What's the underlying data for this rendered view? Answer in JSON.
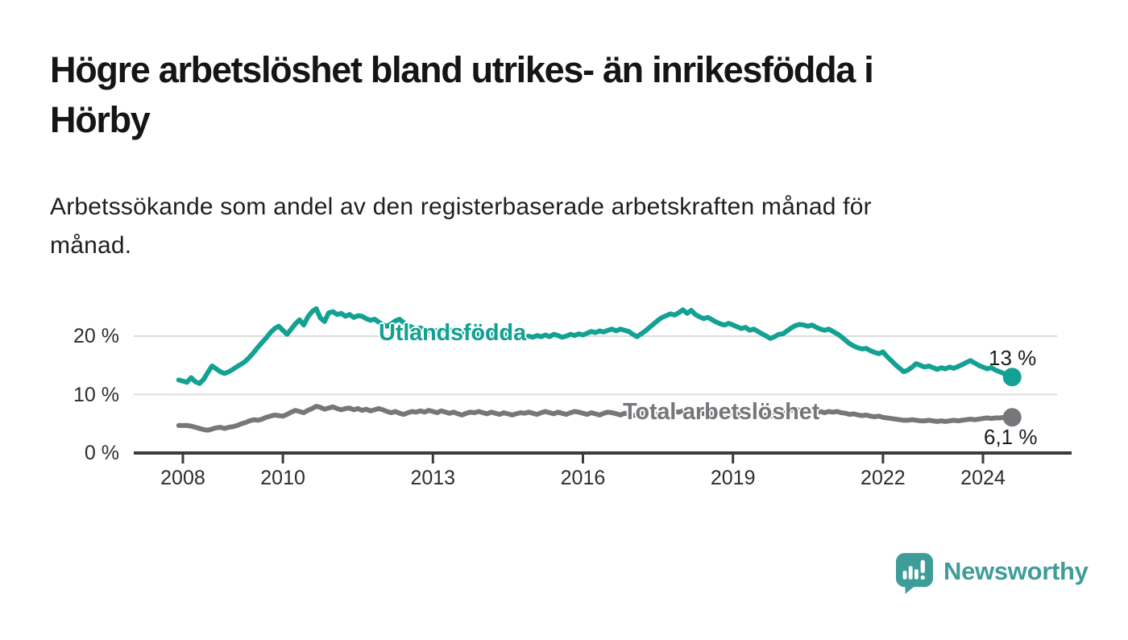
{
  "footer": {
    "brand": "Newsworthy"
  },
  "colors": {
    "accent_teal": "#12a193",
    "series_gray": "#77767b",
    "axis": "#3b3b3b",
    "grid": "#dcdcdc",
    "text_dark": "#151515",
    "logo_teal": "#3e9d99"
  },
  "chart_data": {
    "type": "line",
    "title": "Högre arbetslöshet bland utrikes- än inrikesfödda i\nHörby",
    "subtitle": "Arbetssökande som andel av den registerbaserade arbetskraften månad för\nmånad.",
    "grid": "horizontal",
    "legend_position": "inline-on-line",
    "x_axis": {
      "unit": "month",
      "start": "2007-12",
      "end": "2024-08",
      "ticks": [
        {
          "label": "2008",
          "month_index": 1
        },
        {
          "label": "2010",
          "month_index": 25
        },
        {
          "label": "2013",
          "month_index": 61
        },
        {
          "label": "2016",
          "month_index": 97
        },
        {
          "label": "2019",
          "month_index": 133
        },
        {
          "label": "2022",
          "month_index": 169
        },
        {
          "label": "2024",
          "month_index": 193
        }
      ]
    },
    "y_axis": {
      "unit": "%",
      "range": [
        0,
        27
      ],
      "ticks": [
        {
          "value": 0,
          "label": "0 %"
        },
        {
          "value": 10,
          "label": "10 %"
        },
        {
          "value": 20,
          "label": "20 %"
        }
      ]
    },
    "series": [
      {
        "name": "Utlandsfödda",
        "label": "Utlandsfödda",
        "color": "#12a193",
        "end_value": 13.0,
        "end_label": "13 %",
        "values": [
          12.5,
          12.3,
          12.1,
          12.9,
          12.2,
          11.9,
          12.6,
          13.8,
          14.9,
          14.4,
          13.9,
          13.6,
          13.9,
          14.3,
          14.8,
          15.2,
          15.7,
          16.4,
          17.2,
          18.1,
          18.9,
          19.7,
          20.6,
          21.3,
          21.7,
          21.0,
          20.3,
          21.2,
          22.1,
          22.8,
          21.9,
          23.3,
          24.2,
          24.7,
          23.1,
          22.5,
          24.0,
          24.2,
          23.7,
          23.9,
          23.4,
          23.7,
          23.2,
          23.5,
          23.4,
          23.0,
          22.7,
          22.9,
          22.4,
          21.9,
          21.7,
          22.1,
          22.6,
          22.9,
          22.3,
          21.8,
          21.5,
          21.2,
          21.4,
          21.1,
          20.9,
          21.1,
          20.8,
          21.2,
          20.9,
          21.1,
          20.7,
          20.9,
          20.5,
          20.8,
          20.4,
          20.6,
          20.3,
          20.5,
          20.2,
          20.6,
          20.3,
          20.1,
          20.4,
          20.0,
          20.2,
          19.9,
          20.1,
          19.8,
          20.0,
          19.8,
          20.1,
          19.9,
          20.2,
          19.9,
          20.3,
          20.1,
          19.8,
          20.0,
          20.3,
          20.1,
          20.4,
          20.2,
          20.5,
          20.8,
          20.6,
          20.9,
          20.7,
          21.0,
          21.2,
          20.9,
          21.2,
          21.0,
          20.8,
          20.3,
          19.9,
          20.4,
          20.9,
          21.5,
          22.1,
          22.7,
          23.2,
          23.5,
          23.8,
          23.6,
          24.0,
          24.5,
          23.9,
          24.4,
          23.7,
          23.3,
          23.0,
          23.2,
          22.8,
          22.4,
          22.1,
          21.9,
          22.2,
          21.9,
          21.6,
          21.3,
          21.5,
          21.0,
          21.2,
          20.8,
          20.4,
          20.0,
          19.6,
          19.9,
          20.3,
          20.4,
          20.9,
          21.4,
          21.8,
          22.0,
          21.9,
          21.7,
          21.9,
          21.5,
          21.2,
          21.0,
          21.2,
          20.8,
          20.4,
          19.9,
          19.3,
          18.7,
          18.3,
          18.0,
          17.8,
          17.9,
          17.5,
          17.2,
          17.0,
          17.3,
          16.5,
          15.8,
          15.1,
          14.5,
          13.9,
          14.2,
          14.7,
          15.3,
          15.0,
          14.7,
          14.9,
          14.6,
          14.3,
          14.6,
          14.4,
          14.7,
          14.5,
          14.8,
          15.1,
          15.5,
          15.8,
          15.4,
          15.0,
          14.7,
          14.4,
          14.6,
          14.2,
          13.9,
          13.6,
          13.3,
          13.0
        ]
      },
      {
        "name": "Total arbetslöshet",
        "label": "Total arbetslöshet",
        "color": "#77767b",
        "end_value": 6.1,
        "end_label": "6,1 %",
        "values": [
          4.7,
          4.7,
          4.7,
          4.6,
          4.4,
          4.2,
          4.0,
          3.9,
          4.1,
          4.3,
          4.4,
          4.2,
          4.4,
          4.5,
          4.7,
          5.0,
          5.2,
          5.5,
          5.7,
          5.6,
          5.8,
          6.1,
          6.3,
          6.5,
          6.4,
          6.3,
          6.6,
          7.0,
          7.3,
          7.1,
          6.9,
          7.3,
          7.6,
          8.0,
          7.8,
          7.5,
          7.7,
          7.9,
          7.6,
          7.4,
          7.6,
          7.7,
          7.4,
          7.6,
          7.3,
          7.5,
          7.2,
          7.4,
          7.6,
          7.4,
          7.1,
          6.9,
          7.1,
          6.8,
          6.6,
          6.9,
          7.1,
          7.0,
          7.2,
          7.0,
          7.3,
          7.1,
          6.9,
          7.2,
          7.0,
          6.8,
          7.0,
          6.7,
          6.5,
          6.8,
          7.0,
          6.9,
          7.1,
          6.9,
          6.7,
          7.0,
          6.8,
          6.6,
          6.9,
          6.7,
          6.5,
          6.7,
          6.9,
          6.8,
          7.0,
          6.8,
          6.6,
          6.9,
          7.1,
          6.9,
          6.7,
          7.0,
          6.8,
          6.6,
          6.9,
          7.1,
          7.0,
          6.8,
          6.6,
          6.9,
          6.7,
          6.5,
          6.8,
          7.0,
          6.9,
          6.7,
          6.5,
          6.8,
          6.6,
          6.4,
          6.6,
          6.8,
          6.7,
          6.9,
          6.7,
          6.5,
          6.8,
          7.0,
          6.9,
          7.1,
          7.0,
          7.2,
          7.4,
          7.3,
          7.1,
          6.9,
          6.7,
          6.9,
          6.7,
          6.5,
          6.7,
          6.5,
          6.7,
          6.9,
          6.7,
          6.5,
          6.7,
          6.5,
          6.3,
          6.5,
          6.3,
          6.5,
          6.3,
          6.5,
          6.7,
          6.9,
          7.1,
          7.3,
          7.5,
          7.3,
          7.1,
          7.3,
          7.1,
          6.9,
          7.1,
          6.9,
          7.1,
          7.0,
          7.1,
          6.9,
          6.8,
          6.6,
          6.7,
          6.5,
          6.4,
          6.5,
          6.3,
          6.2,
          6.3,
          6.1,
          6.0,
          5.9,
          5.8,
          5.7,
          5.6,
          5.6,
          5.7,
          5.6,
          5.5,
          5.5,
          5.6,
          5.5,
          5.4,
          5.5,
          5.4,
          5.5,
          5.6,
          5.5,
          5.6,
          5.7,
          5.8,
          5.7,
          5.8,
          5.9,
          6.0,
          5.9,
          6.0,
          6.0,
          6.1,
          6.0,
          6.1
        ]
      }
    ]
  }
}
